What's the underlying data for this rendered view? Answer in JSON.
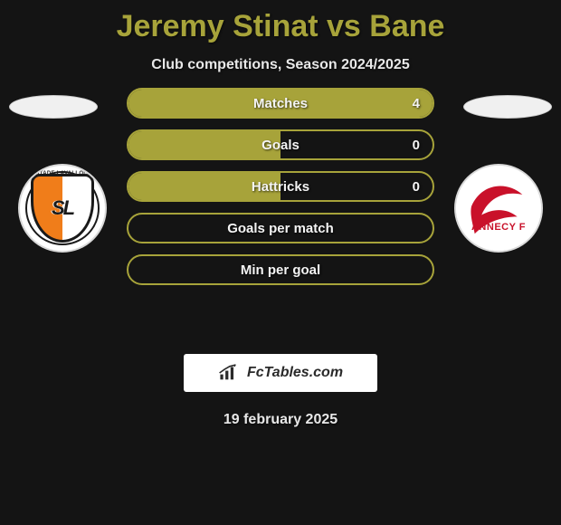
{
  "title": "Jeremy Stinat vs Bane",
  "subtitle": "Club competitions, Season 2024/2025",
  "date": "19 february 2025",
  "badge_text": "FcTables.com",
  "colors": {
    "background": "#141414",
    "accent": "#a7a33a",
    "text": "#e8e8e8",
    "title": "#a7a33a"
  },
  "left_club": {
    "name": "Stade Lavallois",
    "crest_text": "SL",
    "ring_text": "STADE LAVALLOIS"
  },
  "right_club": {
    "name": "Annecy FC",
    "crest_text": "ANNECY F"
  },
  "stats": [
    {
      "label": "Matches",
      "value": "4",
      "fill_pct": 100
    },
    {
      "label": "Goals",
      "value": "0",
      "fill_pct": 50
    },
    {
      "label": "Hattricks",
      "value": "0",
      "fill_pct": 50
    },
    {
      "label": "Goals per match",
      "value": "",
      "fill_pct": 0
    },
    {
      "label": "Min per goal",
      "value": "",
      "fill_pct": 0
    }
  ]
}
